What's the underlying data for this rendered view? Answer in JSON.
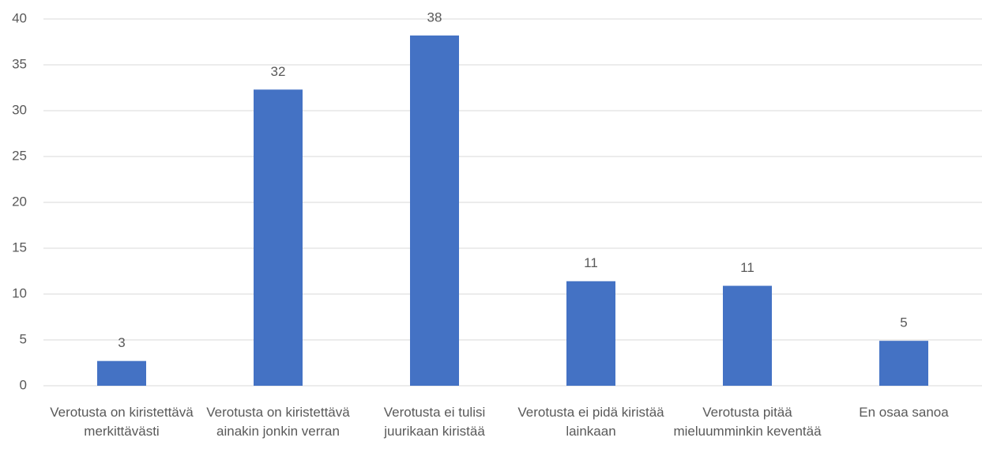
{
  "chart_data": {
    "type": "bar",
    "categories": [
      "Verotusta on kiristettävä merkittävästi",
      "Verotusta on kiristettävä ainakin jonkin verran",
      "Verotusta ei tulisi juurikaan kiristää",
      "Verotusta ei pidä kiristää lainkaan",
      "Verotusta pitää mieluumminkin keventää",
      "En osaa sanoa"
    ],
    "values": [
      2.7,
      32.3,
      38.2,
      11.4,
      10.9,
      4.9
    ],
    "value_labels": [
      "3",
      "32",
      "38",
      "11",
      "11",
      "5"
    ],
    "color": "#4472c4",
    "ylim": [
      0,
      40
    ],
    "yticks": [
      0,
      5,
      10,
      15,
      20,
      25,
      30,
      35,
      40
    ],
    "grid": true
  }
}
